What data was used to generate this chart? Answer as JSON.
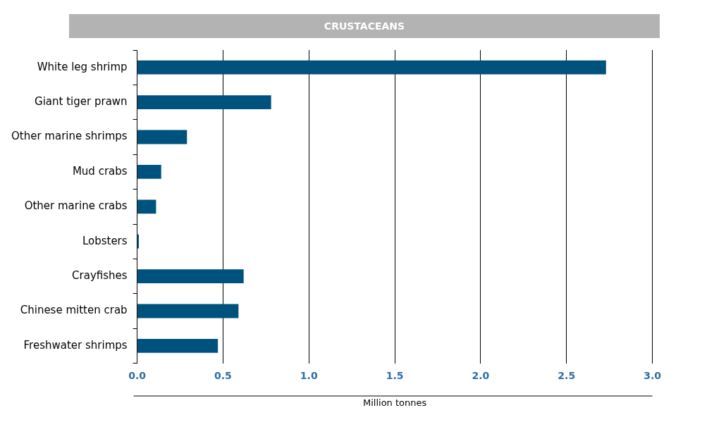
{
  "chart_data": {
    "type": "bar",
    "orientation": "horizontal",
    "title": "CRUSTACEANS",
    "xlabel": "Million tonnes",
    "categories": [
      "White leg shrimp",
      "Giant tiger prawn",
      "Other marine shrimps",
      "Mud crabs",
      "Other marine crabs",
      "Lobsters",
      "Crayfishes",
      "Chinese mitten crab",
      "Freshwater shrimps"
    ],
    "values": [
      2.73,
      0.78,
      0.29,
      0.14,
      0.11,
      0.01,
      0.62,
      0.59,
      0.47
    ],
    "color": "#00527e",
    "xlim": [
      0,
      3
    ],
    "xticks": [
      {
        "value": 0,
        "label": "0.0"
      },
      {
        "value": 0.5,
        "label": "0.5"
      },
      {
        "value": 1,
        "label": "1.0"
      },
      {
        "value": 1.5,
        "label": "1.5"
      },
      {
        "value": 2,
        "label": "2.0"
      },
      {
        "value": 2.5,
        "label": "2.5"
      },
      {
        "value": 3,
        "label": "3.0"
      }
    ],
    "grid": "x",
    "legend": false
  }
}
